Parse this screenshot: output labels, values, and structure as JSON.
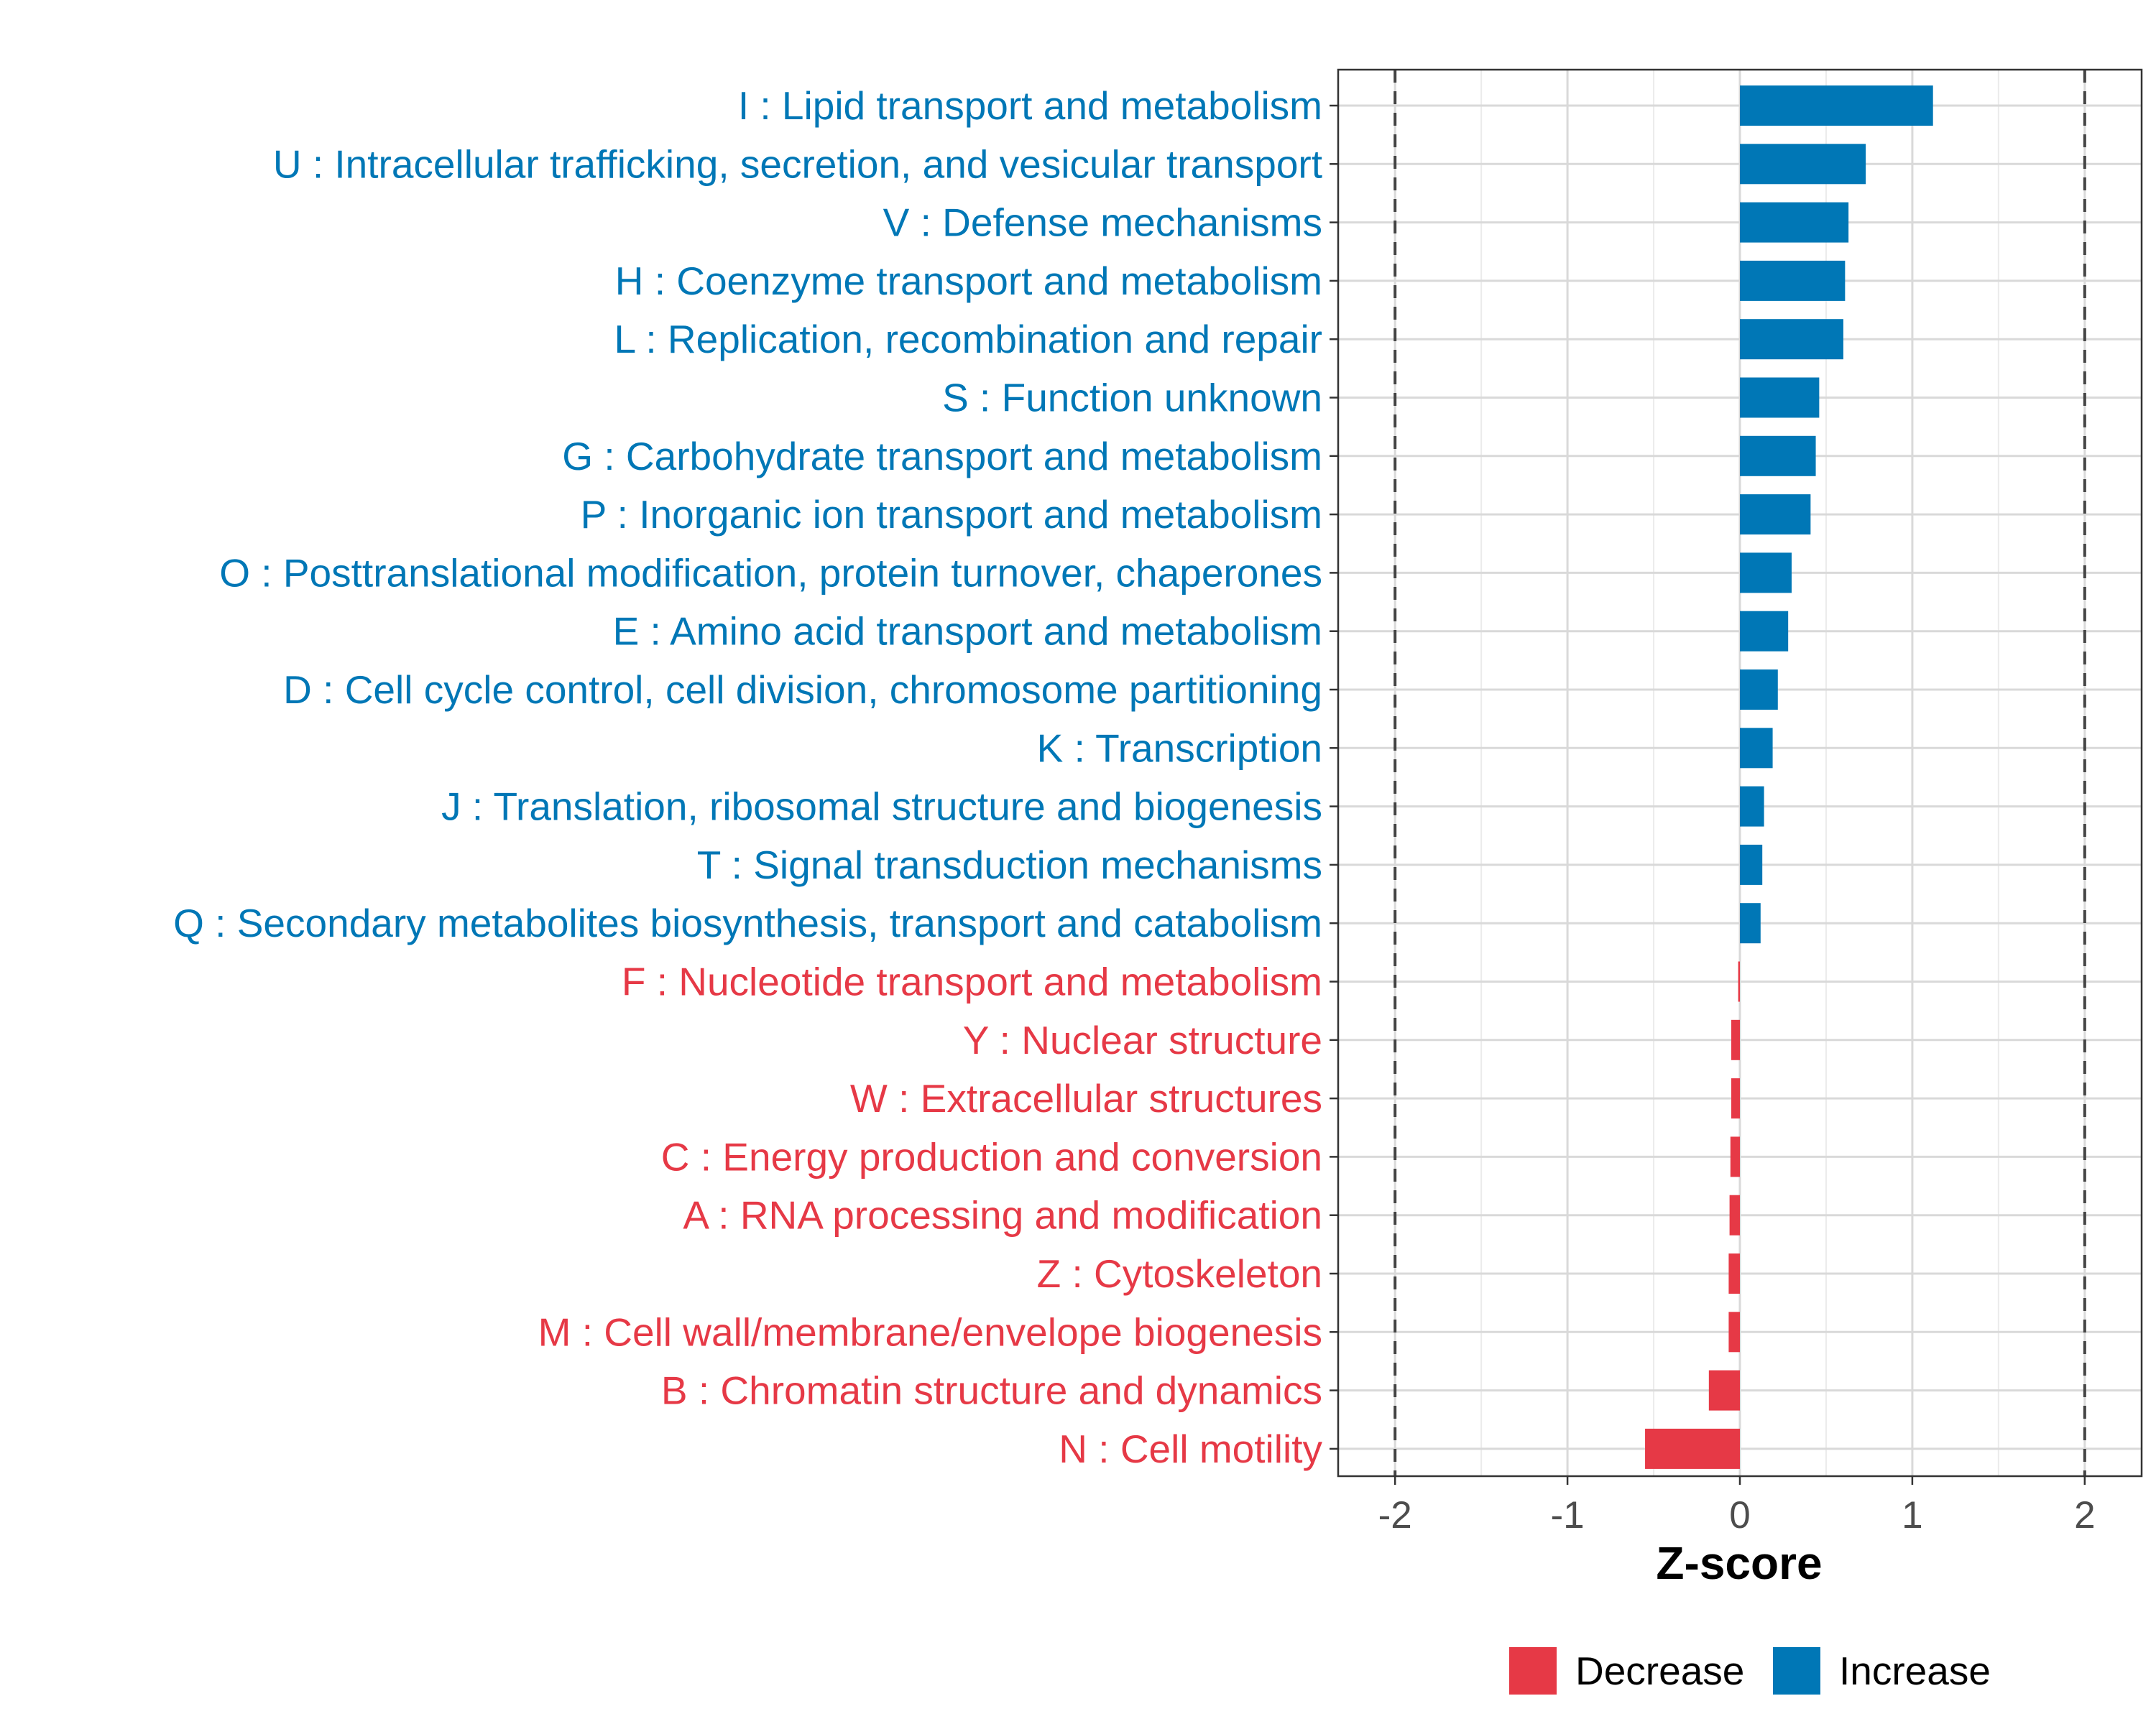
{
  "chart_data": {
    "type": "bar",
    "orientation": "horizontal",
    "title": "",
    "xlabel": "Z-score",
    "ylabel": "",
    "xlim": [
      -2.33,
      2.33
    ],
    "xticks": [
      -2,
      -1,
      0,
      1,
      2
    ],
    "xtick_labels": [
      "-2",
      "-1",
      "0",
      "1",
      "2"
    ],
    "reference_lines": [
      -2,
      2
    ],
    "grid": true,
    "legend_position": "bottom",
    "legend": [
      {
        "name": "Decrease",
        "color": "#E63946"
      },
      {
        "name": "Increase",
        "color": "#0077B6"
      }
    ],
    "categories": [
      "I : Lipid transport and metabolism",
      "U : Intracellular trafficking, secretion, and vesicular transport",
      "V : Defense mechanisms",
      "H : Coenzyme transport and metabolism",
      "L : Replication, recombination and repair",
      "S : Function unknown",
      "G : Carbohydrate transport and metabolism",
      "P : Inorganic ion transport and metabolism",
      "O : Posttranslational modification, protein turnover, chaperones",
      "E : Amino acid transport and metabolism",
      "D : Cell cycle control, cell division, chromosome partitioning",
      "K : Transcription",
      "J : Translation, ribosomal structure and biogenesis",
      "T : Signal transduction mechanisms",
      "Q : Secondary metabolites biosynthesis, transport and catabolism",
      "F : Nucleotide transport and metabolism",
      "Y : Nuclear structure",
      "W : Extracellular structures",
      "C : Energy production and conversion",
      "A : RNA processing and modification",
      "Z : Cytoskeleton",
      "M : Cell wall/membrane/envelope biogenesis",
      "B : Chromatin structure and dynamics",
      "N : Cell motility"
    ],
    "values": [
      1.12,
      0.73,
      0.63,
      0.61,
      0.6,
      0.46,
      0.44,
      0.41,
      0.3,
      0.28,
      0.22,
      0.19,
      0.14,
      0.13,
      0.12,
      -0.01,
      -0.05,
      -0.05,
      -0.055,
      -0.06,
      -0.065,
      -0.065,
      -0.18,
      -0.55
    ],
    "groups": [
      "Increase",
      "Increase",
      "Increase",
      "Increase",
      "Increase",
      "Increase",
      "Increase",
      "Increase",
      "Increase",
      "Increase",
      "Increase",
      "Increase",
      "Increase",
      "Increase",
      "Increase",
      "Decrease",
      "Decrease",
      "Decrease",
      "Decrease",
      "Decrease",
      "Decrease",
      "Decrease",
      "Decrease",
      "Decrease"
    ]
  }
}
